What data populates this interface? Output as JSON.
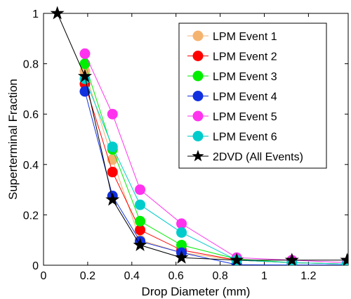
{
  "chart_data": {
    "type": "line",
    "xlabel": "Drop Diameter (mm)",
    "ylabel": "Superterminal Fraction",
    "xlim": [
      0,
      1.38
    ],
    "ylim": [
      0,
      1
    ],
    "xticks": [
      0,
      0.2,
      0.4,
      0.6,
      0.8,
      1,
      1.2
    ],
    "xtick_labels": [
      "0",
      "0.2",
      "0.4",
      "0.6",
      "0.8",
      "1",
      "1.2"
    ],
    "yticks": [
      0,
      0.2,
      0.4,
      0.6,
      0.8,
      1
    ],
    "ytick_labels": [
      "0",
      "0.2",
      "0.4",
      "0.6",
      "0.8",
      "1"
    ],
    "grid": false,
    "legend_position": "top-right",
    "series": [
      {
        "name": "LPM Event 1",
        "color": "#f5b370",
        "marker": "circle",
        "x": [
          0.1875,
          0.3125,
          0.4375,
          0.625,
          0.875,
          1.125,
          1.375
        ],
        "y": [
          0.77,
          0.42,
          0.1,
          0.05,
          0.02,
          0.01,
          0.005
        ]
      },
      {
        "name": "LPM Event 2",
        "color": "#ff0000",
        "marker": "circle",
        "x": [
          0.1875,
          0.3125,
          0.4375,
          0.625,
          0.875,
          1.125,
          1.375
        ],
        "y": [
          0.72,
          0.37,
          0.14,
          0.06,
          0.02,
          0.01,
          0.005
        ]
      },
      {
        "name": "LPM Event 3",
        "color": "#00ee00",
        "marker": "circle",
        "x": [
          0.1875,
          0.3125,
          0.4375,
          0.625,
          0.875,
          1.125,
          1.375
        ],
        "y": [
          0.8,
          0.46,
          0.175,
          0.08,
          0.025,
          0.01,
          0.005
        ]
      },
      {
        "name": "LPM Event 4",
        "color": "#1030e0",
        "marker": "circle",
        "x": [
          0.1875,
          0.3125,
          0.4375,
          0.625,
          0.875,
          1.125,
          1.375
        ],
        "y": [
          0.69,
          0.275,
          0.095,
          0.05,
          0.002,
          0.001,
          0.001
        ]
      },
      {
        "name": "LPM Event 5",
        "color": "#ff33ee",
        "marker": "circle",
        "x": [
          0.1875,
          0.3125,
          0.4375,
          0.625,
          0.875,
          1.125,
          1.375
        ],
        "y": [
          0.84,
          0.6,
          0.3,
          0.165,
          0.03,
          0.02,
          0.01
        ]
      },
      {
        "name": "LPM Event 6",
        "color": "#00cccc",
        "marker": "circle",
        "x": [
          0.1875,
          0.3125,
          0.4375,
          0.625,
          0.875,
          1.125,
          1.375
        ],
        "y": [
          0.74,
          0.47,
          0.24,
          0.13,
          0.02,
          0.01,
          0.005
        ]
      },
      {
        "name": "2DVD (All Events)",
        "color": "#000000",
        "marker": "star",
        "x": [
          0.0625,
          0.1875,
          0.3125,
          0.4375,
          0.625,
          0.875,
          1.125,
          1.375
        ],
        "y": [
          1.0,
          0.75,
          0.26,
          0.08,
          0.03,
          0.02,
          0.02,
          0.02
        ]
      }
    ]
  }
}
